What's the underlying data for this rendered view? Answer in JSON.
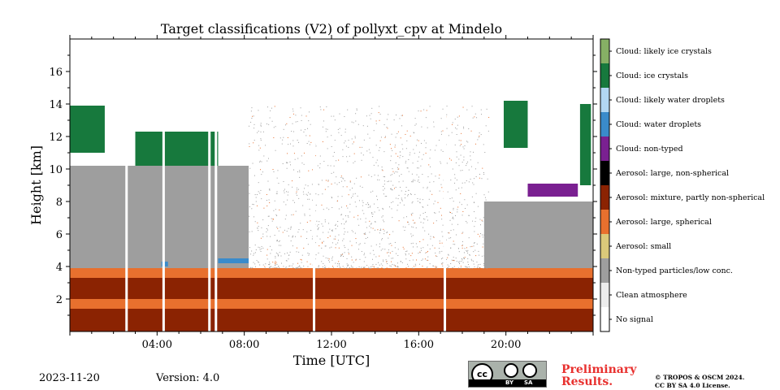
{
  "chart_data": {
    "type": "heatmap",
    "title": "Target classifications (V2) of pollyxt_cpv at Mindelo",
    "xlabel": "Time [UTC]",
    "ylabel": "Height [km]",
    "xlim_hours": [
      0,
      24
    ],
    "ylim_km": [
      0,
      18
    ],
    "x_ticks": [
      {
        "hour": 4,
        "label": "04:00"
      },
      {
        "hour": 8,
        "label": "08:00"
      },
      {
        "hour": 12,
        "label": "12:00"
      },
      {
        "hour": 16,
        "label": "16:00"
      },
      {
        "hour": 20,
        "label": "20:00"
      }
    ],
    "y_ticks": [
      {
        "km": 2,
        "label": "2"
      },
      {
        "km": 4,
        "label": "4"
      },
      {
        "km": 6,
        "label": "6"
      },
      {
        "km": 8,
        "label": "8"
      },
      {
        "km": 10,
        "label": "10"
      },
      {
        "km": 12,
        "label": "12"
      },
      {
        "km": 14,
        "label": "14"
      },
      {
        "km": 16,
        "label": "16"
      }
    ],
    "classes": [
      {
        "id": 0,
        "label": "No signal",
        "color": "#ffffff"
      },
      {
        "id": 1,
        "label": "Clean atmosphere",
        "color": "#ececec"
      },
      {
        "id": 2,
        "label": "Non-typed particles/low conc.",
        "color": "#9e9e9e"
      },
      {
        "id": 3,
        "label": "Aerosol: small",
        "color": "#dbc97a"
      },
      {
        "id": 4,
        "label": "Aerosol: large, spherical",
        "color": "#e8702e"
      },
      {
        "id": 5,
        "label": "Aerosol: mixture, partly non-spherical",
        "color": "#8b2302"
      },
      {
        "id": 6,
        "label": "Aerosol: large, non-spherical",
        "color": "#000000"
      },
      {
        "id": 7,
        "label": "Cloud: non-typed",
        "color": "#7a2091"
      },
      {
        "id": 8,
        "label": "Cloud: water droplets",
        "color": "#3a8bcb"
      },
      {
        "id": 9,
        "label": "Cloud: likely water droplets",
        "color": "#b2d7f3"
      },
      {
        "id": 10,
        "label": "Cloud: ice crystals",
        "color": "#17793d"
      },
      {
        "id": 11,
        "label": "Cloud: likely ice crystals",
        "color": "#86b065"
      }
    ],
    "layers": [
      {
        "class": 5,
        "h_from": 0,
        "h_to": 24,
        "km_from": 0.0,
        "km_to": 1.4
      },
      {
        "class": 4,
        "h_from": 0,
        "h_to": 24,
        "km_from": 1.4,
        "km_to": 2.0
      },
      {
        "class": 5,
        "h_from": 0,
        "h_to": 24,
        "km_from": 2.0,
        "km_to": 3.3
      },
      {
        "class": 4,
        "h_from": 0,
        "h_to": 24,
        "km_from": 3.3,
        "km_to": 3.9
      },
      {
        "class": 2,
        "h_from": 0,
        "h_to": 8.2,
        "km_from": 3.9,
        "km_to": 10.2
      },
      {
        "class": 2,
        "h_from": 19.0,
        "h_to": 24,
        "km_from": 3.9,
        "km_to": 8.0
      },
      {
        "class": 10,
        "h_from": 0,
        "h_to": 1.6,
        "km_from": 11.0,
        "km_to": 13.9
      },
      {
        "class": 10,
        "h_from": 3.0,
        "h_to": 6.8,
        "km_from": 10.2,
        "km_to": 12.3
      },
      {
        "class": 10,
        "h_from": 19.9,
        "h_to": 21.0,
        "km_from": 11.3,
        "km_to": 14.2
      },
      {
        "class": 10,
        "h_from": 23.4,
        "h_to": 23.9,
        "km_from": 9.0,
        "km_to": 14.0
      },
      {
        "class": 7,
        "h_from": 21.0,
        "h_to": 23.3,
        "km_from": 8.3,
        "km_to": 9.1
      },
      {
        "class": 8,
        "h_from": 6.8,
        "h_to": 8.2,
        "km_from": 4.2,
        "km_to": 4.5
      },
      {
        "class": 8,
        "h_from": 4.2,
        "h_to": 4.5,
        "km_from": 4.0,
        "km_to": 4.3
      }
    ],
    "gaps_hours": [
      2.6,
      4.3,
      6.4,
      6.7,
      11.2,
      17.2
    ]
  },
  "footer": {
    "date": "2023-11-20",
    "version": "Version: 4.0",
    "license_badge": {
      "cc": "cc",
      "by": "BY",
      "sa": "SA"
    },
    "preliminary_line1": "Preliminary",
    "preliminary_line2": "Results.",
    "copyright_line1": "© TROPOS & OSCM 2024.",
    "copyright_line2": "CC BY SA 4.0 License."
  }
}
